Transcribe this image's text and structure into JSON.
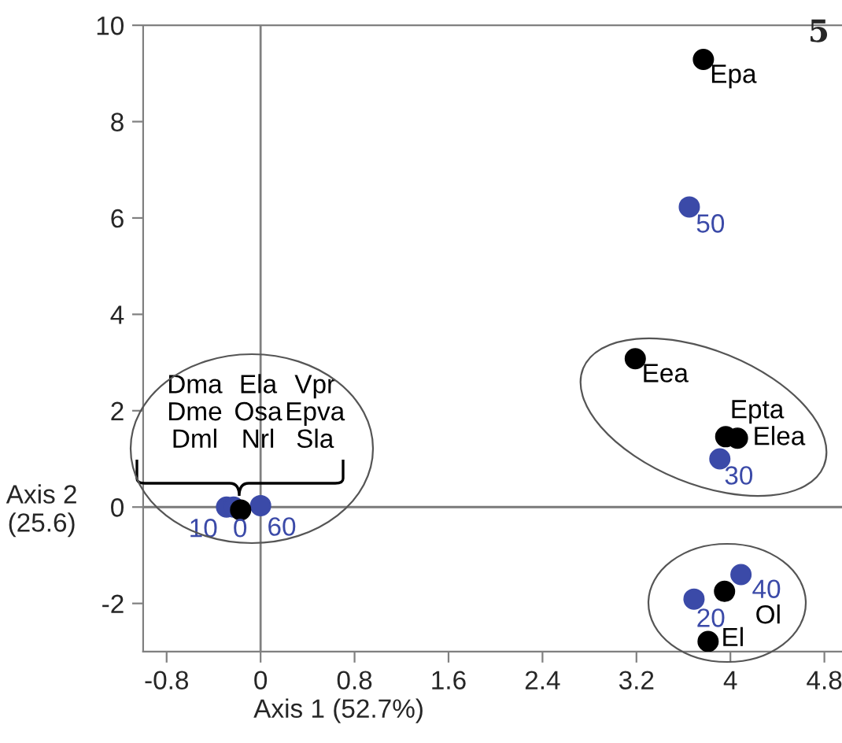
{
  "chart_data": {
    "type": "scatter",
    "xlabel": "Axis 1 (52.7%)",
    "ylabel": "Axis 2\n(25.6)",
    "series": [
      {
        "color": "#3b4aa8",
        "x": [
          3.65,
          3.91,
          4.09,
          3.69,
          -0.29,
          -0.23,
          0.0
        ],
        "values": [
          6.23,
          1.0,
          -1.4,
          -1.91,
          0.0,
          0.0,
          0.03
        ]
      },
      {
        "color": "#000000",
        "x": [
          3.77,
          3.19,
          3.96,
          4.06,
          3.95,
          3.81,
          -0.17
        ],
        "values": [
          9.29,
          3.08,
          1.46,
          1.43,
          -1.75,
          -2.79,
          -0.06
        ]
      }
    ],
    "annotations": [
      {
        "text": "Epa",
        "x": 3.77,
        "y": 9.29
      },
      {
        "text": "50",
        "x": 3.65,
        "y": 6.23
      },
      {
        "text": "Eea",
        "x": 3.19,
        "y": 3.08
      },
      {
        "text": "Epta",
        "x": 3.96,
        "y": 1.46
      },
      {
        "text": "Elea",
        "x": 4.06,
        "y": 1.43
      },
      {
        "text": "30",
        "x": 3.91,
        "y": 1.0
      },
      {
        "text": "40",
        "x": 4.09,
        "y": -1.4
      },
      {
        "text": "20",
        "x": 3.69,
        "y": -1.91
      },
      {
        "text": "Ol",
        "x": 3.95,
        "y": -1.75
      },
      {
        "text": "El",
        "x": 3.81,
        "y": -2.79
      },
      {
        "text": "10",
        "x": -0.29,
        "y": 0.0
      },
      {
        "text": "0",
        "x": -0.23,
        "y": 0.0
      },
      {
        "text": "60",
        "x": 0.0,
        "y": 0.03
      },
      {
        "text": "Dma\nDme\nDml",
        "x": -0.17,
        "y": -0.06
      },
      {
        "text": "Ela\nOsa\nNrl",
        "x": -0.17,
        "y": -0.06
      },
      {
        "text": "Vpr\nEpva\nSla",
        "x": -0.17,
        "y": -0.06
      },
      "5"
    ],
    "ref_lines": [
      {
        "axis": "x",
        "value": 0,
        "color": "#808080"
      },
      {
        "axis": "y",
        "value": 0,
        "color": "#7a7a7a"
      }
    ],
    "xlim": [
      -1.0,
      4.95
    ],
    "ylim": [
      -3.0,
      10.0
    ],
    "xticks": [
      {
        "value": -0.8,
        "label": "-0.8"
      },
      0,
      0.8,
      1.6,
      2.4,
      3.2,
      4,
      4.8
    ],
    "yticks": [
      {
        "value": -2,
        "label": "-2"
      },
      0,
      2,
      4,
      6,
      8,
      10
    ],
    "marker": "circle",
    "grid": false,
    "legend": false
  }
}
